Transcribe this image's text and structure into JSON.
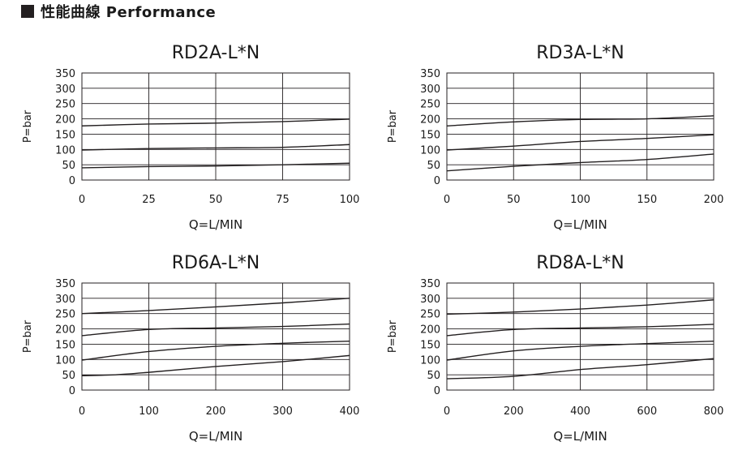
{
  "header": {
    "title": "性能曲線 Performance"
  },
  "chart_data": [
    {
      "type": "line",
      "title": "RD2A-L*N",
      "xlabel": "Q=L/MIN",
      "ylabel": "P=bar",
      "xlim": [
        0,
        100
      ],
      "ylim": [
        0,
        350
      ],
      "xticks": [
        0,
        25,
        50,
        75,
        100
      ],
      "yticks": [
        0,
        50,
        100,
        150,
        200,
        250,
        300,
        350
      ],
      "grid": true,
      "series": [
        {
          "x": [
            0,
            25,
            50,
            75,
            100
          ],
          "values": [
            177,
            183,
            186,
            191,
            199
          ]
        },
        {
          "x": [
            0,
            25,
            50,
            75,
            100
          ],
          "values": [
            98,
            103,
            105,
            107,
            116
          ]
        },
        {
          "x": [
            0,
            25,
            50,
            75,
            100
          ],
          "values": [
            40,
            44,
            46,
            50,
            55
          ]
        }
      ]
    },
    {
      "type": "line",
      "title": "RD3A-L*N",
      "xlabel": "Q=L/MIN",
      "ylabel": "P=bar",
      "xlim": [
        0,
        200
      ],
      "ylim": [
        0,
        350
      ],
      "xticks": [
        0,
        50,
        100,
        150,
        200
      ],
      "yticks": [
        0,
        50,
        100,
        150,
        200,
        250,
        300,
        350
      ],
      "grid": true,
      "series": [
        {
          "x": [
            0,
            50,
            100,
            150,
            200
          ],
          "values": [
            177,
            190,
            198,
            200,
            210
          ]
        },
        {
          "x": [
            0,
            50,
            100,
            150,
            200
          ],
          "values": [
            98,
            111,
            126,
            136,
            148
          ]
        },
        {
          "x": [
            0,
            50,
            100,
            150,
            200
          ],
          "values": [
            30,
            45,
            57,
            67,
            85
          ]
        }
      ]
    },
    {
      "type": "line",
      "title": "RD6A-L*N",
      "xlabel": "Q=L/MIN",
      "ylabel": "P=bar",
      "xlim": [
        0,
        400
      ],
      "ylim": [
        0,
        350
      ],
      "xticks": [
        0,
        100,
        200,
        300,
        400
      ],
      "yticks": [
        0,
        50,
        100,
        150,
        200,
        250,
        300,
        350
      ],
      "grid": true,
      "series": [
        {
          "x": [
            0,
            100,
            200,
            300,
            400
          ],
          "values": [
            250,
            260,
            272,
            285,
            300
          ]
        },
        {
          "x": [
            0,
            100,
            200,
            300,
            400
          ],
          "values": [
            178,
            198,
            203,
            208,
            216
          ]
        },
        {
          "x": [
            0,
            100,
            200,
            300,
            400
          ],
          "values": [
            98,
            126,
            143,
            153,
            160
          ]
        },
        {
          "x": [
            0,
            50,
            100,
            200,
            300,
            400
          ],
          "values": [
            47,
            50,
            58,
            77,
            93,
            113
          ]
        }
      ]
    },
    {
      "type": "line",
      "title": "RD8A-L*N",
      "xlabel": "Q=L/MIN",
      "ylabel": "P=bar",
      "xlim": [
        0,
        800
      ],
      "ylim": [
        0,
        350
      ],
      "xticks": [
        0,
        200,
        400,
        600,
        800
      ],
      "yticks": [
        0,
        50,
        100,
        150,
        200,
        250,
        300,
        350
      ],
      "grid": true,
      "series": [
        {
          "x": [
            0,
            200,
            400,
            600,
            800
          ],
          "values": [
            248,
            255,
            265,
            278,
            295
          ]
        },
        {
          "x": [
            0,
            200,
            400,
            600,
            800
          ],
          "values": [
            178,
            198,
            203,
            207,
            215
          ]
        },
        {
          "x": [
            0,
            200,
            400,
            600,
            800
          ],
          "values": [
            98,
            128,
            143,
            152,
            160
          ]
        },
        {
          "x": [
            0,
            200,
            400,
            600,
            800
          ],
          "values": [
            37,
            45,
            67,
            83,
            103
          ]
        }
      ]
    }
  ]
}
